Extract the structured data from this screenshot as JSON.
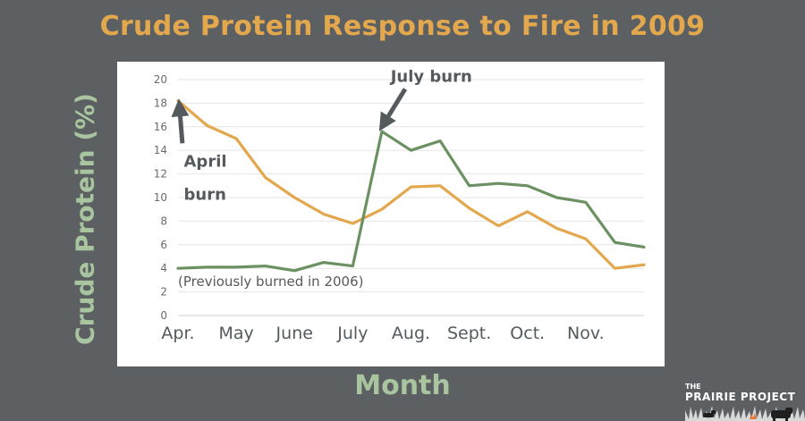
{
  "title": "Crude Protein Response to Fire in 2009",
  "logo": {
    "the": "THE",
    "name": "PRAIRIE PROJECT"
  },
  "chart_data": {
    "type": "line",
    "title": "Crude Protein Response to Fire in 2009",
    "xlabel": "Month",
    "ylabel": "Crude Protein (%)",
    "ylim": [
      0,
      20
    ],
    "yticks": [
      0,
      2,
      4,
      6,
      8,
      10,
      12,
      14,
      16,
      18,
      20
    ],
    "xlim": [
      0,
      16
    ],
    "month_ticks": [
      {
        "label": "Apr.",
        "x": 0
      },
      {
        "label": "May",
        "x": 2
      },
      {
        "label": "June",
        "x": 4
      },
      {
        "label": "July",
        "x": 6
      },
      {
        "label": "Aug.",
        "x": 8
      },
      {
        "label": "Sept.",
        "x": 10
      },
      {
        "label": "Oct.",
        "x": 12
      },
      {
        "label": "Nov.",
        "x": 14
      }
    ],
    "x": [
      0,
      1,
      2,
      3,
      4,
      5,
      6,
      7,
      8,
      9,
      10,
      11,
      12,
      13,
      14,
      15,
      16
    ],
    "series": [
      {
        "name": "April burn",
        "color": "#e3a84e",
        "values": [
          18.2,
          16.1,
          15.0,
          11.7,
          10.0,
          8.6,
          7.8,
          9.0,
          10.9,
          11.0,
          9.1,
          7.6,
          8.8,
          7.4,
          6.5,
          4.0,
          4.3
        ]
      },
      {
        "name": "July burn (Previously burned in 2006)",
        "color": "#6b9162",
        "values": [
          4.0,
          4.1,
          4.1,
          4.2,
          3.8,
          4.5,
          4.2,
          15.6,
          14.0,
          14.8,
          11.0,
          11.2,
          11.0,
          10.0,
          9.6,
          6.2,
          5.8
        ]
      }
    ],
    "annotations": [
      {
        "text": "April",
        "x": 0.2,
        "y": 12.6
      },
      {
        "text": "burn",
        "x": 0.2,
        "y": 9.8
      },
      {
        "text": "July burn",
        "x": 7.3,
        "y": 19.8
      },
      {
        "text": "(Previously burned in 2006)",
        "x": 0.0,
        "y": 2.5
      }
    ],
    "arrows": [
      {
        "name": "april-arrow",
        "from": [
          0.15,
          14.6
        ],
        "to": [
          0.05,
          17.7
        ]
      },
      {
        "name": "july-arrow",
        "from": [
          7.8,
          19.2
        ],
        "to": [
          7.05,
          16.2
        ]
      }
    ]
  }
}
